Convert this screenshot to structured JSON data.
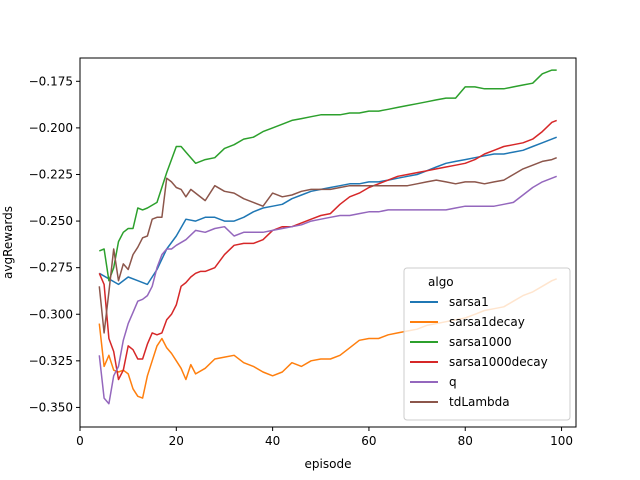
{
  "chart_data": {
    "type": "line",
    "xlabel": "episode",
    "ylabel": "avgRewards",
    "xlim": [
      0,
      103
    ],
    "ylim": [
      -0.3605,
      -0.1625
    ],
    "xticks": [
      0,
      20,
      40,
      60,
      80,
      100
    ],
    "yticks": [
      -0.35,
      -0.325,
      -0.3,
      -0.275,
      -0.25,
      -0.225,
      -0.2,
      -0.175
    ],
    "xtick_labels": [
      "0",
      "20",
      "40",
      "60",
      "80",
      "100"
    ],
    "ytick_labels": [
      "−0.350",
      "−0.325",
      "−0.300",
      "−0.275",
      "−0.250",
      "−0.225",
      "−0.200",
      "−0.175"
    ],
    "grid": false,
    "legend": {
      "title": "algo",
      "placement": "lower-right"
    },
    "series": [
      {
        "name": "sarsa1",
        "color": "#1f77b4",
        "x": [
          4,
          8,
          10,
          12,
          14,
          16,
          18,
          20,
          22,
          24,
          26,
          28,
          30,
          32,
          34,
          36,
          38,
          40,
          42,
          44,
          46,
          48,
          50,
          52,
          54,
          56,
          58,
          60,
          62,
          64,
          66,
          68,
          70,
          72,
          74,
          76,
          78,
          80,
          82,
          84,
          86,
          88,
          90,
          92,
          94,
          96,
          98,
          99
        ],
        "y": [
          -0.278,
          -0.284,
          -0.28,
          -0.282,
          -0.284,
          -0.276,
          -0.265,
          -0.258,
          -0.249,
          -0.25,
          -0.248,
          -0.248,
          -0.25,
          -0.25,
          -0.248,
          -0.245,
          -0.243,
          -0.242,
          -0.241,
          -0.238,
          -0.236,
          -0.234,
          -0.233,
          -0.232,
          -0.231,
          -0.23,
          -0.23,
          -0.229,
          -0.229,
          -0.228,
          -0.227,
          -0.226,
          -0.225,
          -0.223,
          -0.221,
          -0.219,
          -0.218,
          -0.217,
          -0.216,
          -0.215,
          -0.214,
          -0.214,
          -0.213,
          -0.212,
          -0.21,
          -0.208,
          -0.206,
          -0.205
        ]
      },
      {
        "name": "sarsa1decay",
        "color": "#ff7f0e",
        "x": [
          4,
          5,
          6,
          7,
          8,
          9,
          10,
          11,
          12,
          13,
          14,
          15,
          16,
          17,
          18,
          19,
          20,
          21,
          22,
          23,
          24,
          26,
          28,
          30,
          32,
          34,
          36,
          38,
          40,
          42,
          44,
          46,
          48,
          50,
          52,
          54,
          56,
          58,
          60,
          62,
          64,
          66,
          68,
          70,
          72,
          74,
          76,
          78,
          80,
          82,
          84,
          86,
          88,
          90,
          92,
          94,
          96,
          98,
          99
        ],
        "y": [
          -0.305,
          -0.328,
          -0.322,
          -0.33,
          -0.331,
          -0.33,
          -0.332,
          -0.34,
          -0.344,
          -0.345,
          -0.333,
          -0.325,
          -0.317,
          -0.313,
          -0.318,
          -0.321,
          -0.325,
          -0.329,
          -0.335,
          -0.327,
          -0.332,
          -0.329,
          -0.324,
          -0.323,
          -0.322,
          -0.326,
          -0.328,
          -0.331,
          -0.333,
          -0.331,
          -0.326,
          -0.328,
          -0.325,
          -0.324,
          -0.324,
          -0.322,
          -0.318,
          -0.314,
          -0.313,
          -0.313,
          -0.311,
          -0.31,
          -0.309,
          -0.308,
          -0.306,
          -0.305,
          -0.304,
          -0.303,
          -0.302,
          -0.3,
          -0.298,
          -0.297,
          -0.296,
          -0.293,
          -0.29,
          -0.288,
          -0.285,
          -0.282,
          -0.281
        ]
      },
      {
        "name": "sarsa1000",
        "color": "#2ca02c",
        "x": [
          4,
          5,
          6,
          7,
          8,
          9,
          10,
          11,
          12,
          13,
          14,
          16,
          18,
          20,
          21,
          22,
          23,
          24,
          26,
          28,
          30,
          32,
          34,
          36,
          38,
          40,
          42,
          44,
          46,
          48,
          50,
          52,
          54,
          56,
          58,
          60,
          62,
          64,
          66,
          68,
          70,
          72,
          74,
          76,
          78,
          80,
          82,
          84,
          86,
          88,
          90,
          92,
          94,
          96,
          98,
          99
        ],
        "y": [
          -0.266,
          -0.265,
          -0.282,
          -0.275,
          -0.261,
          -0.256,
          -0.254,
          -0.254,
          -0.243,
          -0.244,
          -0.243,
          -0.24,
          -0.224,
          -0.21,
          -0.21,
          -0.213,
          -0.216,
          -0.219,
          -0.217,
          -0.216,
          -0.211,
          -0.209,
          -0.206,
          -0.205,
          -0.202,
          -0.2,
          -0.198,
          -0.196,
          -0.195,
          -0.194,
          -0.193,
          -0.193,
          -0.193,
          -0.192,
          -0.192,
          -0.191,
          -0.191,
          -0.19,
          -0.189,
          -0.188,
          -0.187,
          -0.186,
          -0.185,
          -0.184,
          -0.184,
          -0.178,
          -0.178,
          -0.179,
          -0.179,
          -0.179,
          -0.178,
          -0.177,
          -0.176,
          -0.171,
          -0.169,
          -0.169
        ]
      },
      {
        "name": "sarsa1000decay",
        "color": "#d62728",
        "x": [
          4,
          5,
          6,
          7,
          8,
          9,
          10,
          11,
          12,
          13,
          14,
          15,
          16,
          17,
          18,
          19,
          20,
          21,
          22,
          23,
          24,
          25,
          26,
          28,
          30,
          32,
          34,
          36,
          38,
          40,
          42,
          44,
          46,
          48,
          50,
          52,
          54,
          56,
          58,
          60,
          62,
          64,
          66,
          68,
          70,
          72,
          74,
          76,
          78,
          80,
          82,
          84,
          86,
          88,
          90,
          92,
          94,
          96,
          98,
          99
        ],
        "y": [
          -0.278,
          -0.284,
          -0.313,
          -0.32,
          -0.335,
          -0.33,
          -0.317,
          -0.319,
          -0.324,
          -0.324,
          -0.316,
          -0.31,
          -0.311,
          -0.31,
          -0.303,
          -0.3,
          -0.295,
          -0.285,
          -0.283,
          -0.28,
          -0.278,
          -0.277,
          -0.277,
          -0.275,
          -0.268,
          -0.263,
          -0.262,
          -0.262,
          -0.26,
          -0.255,
          -0.253,
          -0.253,
          -0.251,
          -0.249,
          -0.247,
          -0.246,
          -0.241,
          -0.237,
          -0.235,
          -0.232,
          -0.23,
          -0.228,
          -0.226,
          -0.225,
          -0.224,
          -0.223,
          -0.222,
          -0.221,
          -0.22,
          -0.219,
          -0.217,
          -0.214,
          -0.212,
          -0.21,
          -0.209,
          -0.208,
          -0.206,
          -0.202,
          -0.197,
          -0.196
        ]
      },
      {
        "name": "q",
        "color": "#9467bd",
        "x": [
          4,
          5,
          6,
          7,
          8,
          9,
          10,
          11,
          12,
          13,
          14,
          15,
          16,
          17,
          18,
          19,
          20,
          22,
          24,
          26,
          28,
          30,
          32,
          34,
          36,
          38,
          40,
          42,
          44,
          46,
          48,
          50,
          52,
          54,
          56,
          58,
          60,
          62,
          64,
          66,
          68,
          70,
          72,
          74,
          76,
          78,
          80,
          82,
          84,
          86,
          88,
          90,
          92,
          94,
          96,
          98,
          99
        ],
        "y": [
          -0.322,
          -0.345,
          -0.348,
          -0.333,
          -0.328,
          -0.314,
          -0.305,
          -0.299,
          -0.293,
          -0.292,
          -0.29,
          -0.285,
          -0.275,
          -0.268,
          -0.265,
          -0.265,
          -0.263,
          -0.26,
          -0.255,
          -0.256,
          -0.254,
          -0.253,
          -0.258,
          -0.256,
          -0.256,
          -0.256,
          -0.255,
          -0.254,
          -0.253,
          -0.252,
          -0.25,
          -0.249,
          -0.248,
          -0.247,
          -0.247,
          -0.246,
          -0.245,
          -0.245,
          -0.244,
          -0.244,
          -0.244,
          -0.244,
          -0.244,
          -0.244,
          -0.244,
          -0.243,
          -0.242,
          -0.242,
          -0.242,
          -0.242,
          -0.241,
          -0.24,
          -0.236,
          -0.232,
          -0.229,
          -0.227,
          -0.226
        ]
      },
      {
        "name": "tdLambda",
        "color": "#8c564b",
        "x": [
          4,
          5,
          6,
          7,
          8,
          9,
          10,
          11,
          12,
          13,
          14,
          15,
          16,
          17,
          18,
          19,
          20,
          21,
          22,
          23,
          24,
          26,
          28,
          30,
          32,
          34,
          36,
          38,
          40,
          42,
          44,
          46,
          48,
          50,
          52,
          54,
          56,
          58,
          60,
          62,
          64,
          66,
          68,
          70,
          72,
          74,
          76,
          78,
          80,
          82,
          84,
          86,
          88,
          90,
          92,
          94,
          96,
          98,
          99
        ],
        "y": [
          -0.285,
          -0.31,
          -0.288,
          -0.265,
          -0.282,
          -0.273,
          -0.276,
          -0.268,
          -0.264,
          -0.259,
          -0.258,
          -0.249,
          -0.248,
          -0.248,
          -0.227,
          -0.229,
          -0.232,
          -0.233,
          -0.237,
          -0.233,
          -0.235,
          -0.239,
          -0.231,
          -0.234,
          -0.235,
          -0.238,
          -0.24,
          -0.242,
          -0.235,
          -0.237,
          -0.236,
          -0.234,
          -0.233,
          -0.233,
          -0.233,
          -0.232,
          -0.231,
          -0.231,
          -0.231,
          -0.231,
          -0.231,
          -0.231,
          -0.231,
          -0.23,
          -0.229,
          -0.228,
          -0.229,
          -0.23,
          -0.229,
          -0.229,
          -0.23,
          -0.229,
          -0.228,
          -0.225,
          -0.222,
          -0.22,
          -0.218,
          -0.217,
          -0.216
        ]
      }
    ]
  }
}
